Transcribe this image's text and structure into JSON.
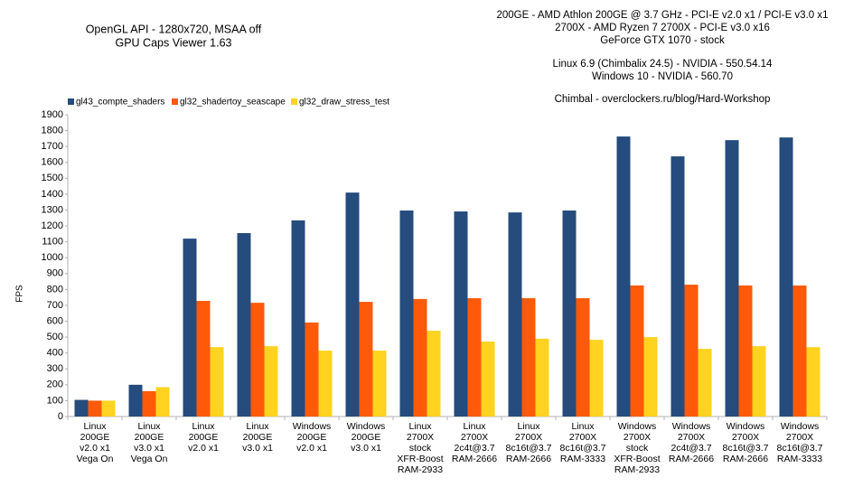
{
  "chart_data": {
    "type": "bar",
    "title": [
      "OpenGL API - 1280x720, MSAA off",
      "GPU Caps Viewer 1.63"
    ],
    "annotations": [
      "200GE - AMD Athlon 200GE @ 3.7 GHz - PCI-E v2.0 x1 / PCI-E v3.0 x1",
      "2700X - AMD Ryzen 7 2700X - PCI-E v3.0 x16",
      "GeForce GTX 1070 - stock",
      "Linux 6.9 (Chimbalix 24.5) - NVIDIA - 550.54.14",
      "Windows 10 - NVIDIA - 560.70",
      "Chimbal - overclockers.ru/blog/Hard-Workshop"
    ],
    "y_label": "FPS",
    "categories": [
      [
        "Linux",
        "200GE",
        "v2.0 x1",
        "Vega On"
      ],
      [
        "Linux",
        "200GE",
        "v3.0 x1",
        "Vega On"
      ],
      [
        "Linux",
        "200GE",
        "v2.0 x1"
      ],
      [
        "Linux",
        "200GE",
        "v3.0 x1"
      ],
      [
        "Windows",
        "200GE",
        "v2.0 x1"
      ],
      [
        "Windows",
        "200GE",
        "v3.0 x1"
      ],
      [
        "Linux",
        "2700X",
        "stock",
        "XFR-Boost",
        "RAM-2933"
      ],
      [
        "Linux",
        "2700X",
        "2c4t@3.7",
        "RAM-2666"
      ],
      [
        "Linux",
        "2700X",
        "8c16t@3.7",
        "RAM-2666"
      ],
      [
        "Linux",
        "2700X",
        "8c16t@3.7",
        "RAM-3333"
      ],
      [
        "Windows",
        "2700X",
        "stock",
        "XFR-Boost",
        "RAM-2933"
      ],
      [
        "Windows",
        "2700X",
        "2c4t@3.7",
        "RAM-2666"
      ],
      [
        "Windows",
        "2700X",
        "8c16t@3.7",
        "RAM-2666"
      ],
      [
        "Windows",
        "2700X",
        "8c16t@3.7",
        "RAM-3333"
      ]
    ],
    "series": [
      {
        "name": "gl43_compte_shaders",
        "color": "#254c7c",
        "values": [
          105,
          200,
          1120,
          1155,
          1235,
          1410,
          1297,
          1291,
          1285,
          1297,
          1763,
          1638,
          1740,
          1757
        ]
      },
      {
        "name": "gl32_shadertoy_seascape",
        "color": "#ff5a0a",
        "values": [
          100,
          160,
          728,
          716,
          592,
          722,
          740,
          745,
          745,
          745,
          825,
          830,
          825,
          825
        ]
      },
      {
        "name": "gl32_draw_stress_test",
        "color": "#ffd320",
        "values": [
          100,
          185,
          437,
          443,
          415,
          415,
          540,
          472,
          490,
          483,
          500,
          426,
          443,
          437
        ]
      }
    ],
    "ylim": [
      0,
      1900
    ],
    "yticks": [
      0,
      100,
      200,
      300,
      400,
      500,
      600,
      700,
      800,
      900,
      1000,
      1100,
      1200,
      1300,
      1400,
      1500,
      1600,
      1700,
      1800,
      1900
    ],
    "grid": false
  }
}
